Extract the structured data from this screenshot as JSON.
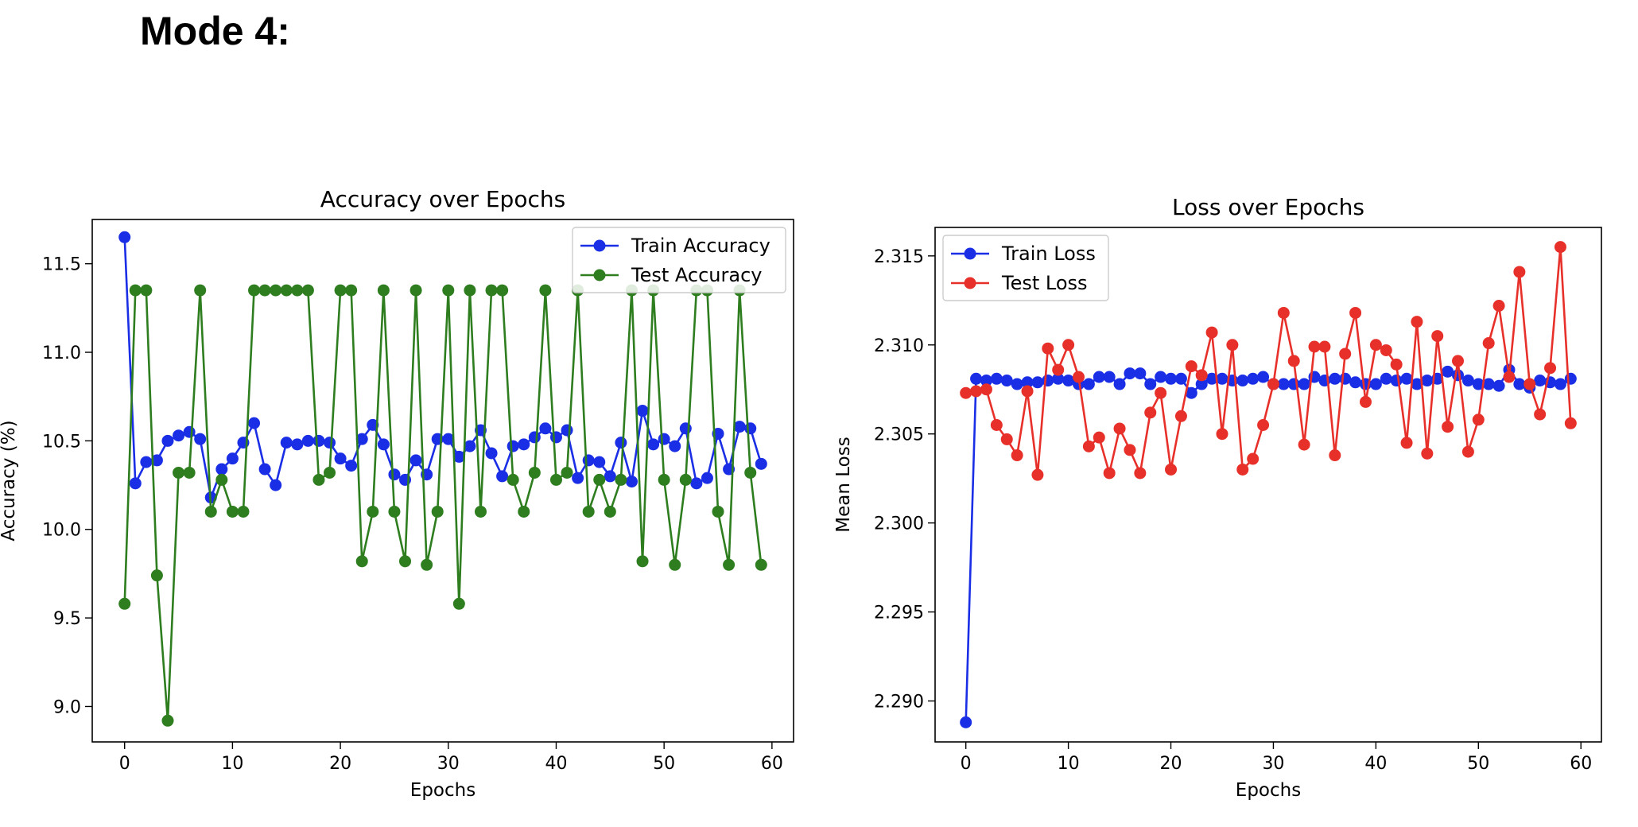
{
  "page": {
    "title": "Mode 4:"
  },
  "chart_data": [
    {
      "type": "line",
      "title": "Accuracy over Epochs",
      "xlabel": "Epochs",
      "ylabel": "Accuracy (%)",
      "xlim": [
        -3,
        62
      ],
      "ylim": [
        8.8,
        11.75
      ],
      "xticks": [
        0,
        10,
        20,
        30,
        40,
        50,
        60
      ],
      "yticks": [
        9.0,
        9.5,
        10.0,
        10.5,
        11.0,
        11.5
      ],
      "ytick_labels": [
        "9.0",
        "9.5",
        "10.0",
        "10.5",
        "11.0",
        "11.5"
      ],
      "legend_position": "top-right",
      "series": [
        {
          "name": "Train Accuracy",
          "color": "#1a2ee6",
          "values": [
            11.65,
            10.26,
            10.38,
            10.39,
            10.5,
            10.53,
            10.55,
            10.51,
            10.18,
            10.34,
            10.4,
            10.49,
            10.6,
            10.34,
            10.25,
            10.49,
            10.48,
            10.5,
            10.5,
            10.49,
            10.4,
            10.36,
            10.51,
            10.59,
            10.48,
            10.31,
            10.28,
            10.39,
            10.31,
            10.51,
            10.51,
            10.41,
            10.47,
            10.56,
            10.43,
            10.3,
            10.47,
            10.48,
            10.52,
            10.57,
            10.52,
            10.56,
            10.29,
            10.39,
            10.38,
            10.3,
            10.49,
            10.27,
            10.67,
            10.48,
            10.51,
            10.47,
            10.57,
            10.26,
            10.29,
            10.54,
            10.34,
            10.58,
            10.57,
            10.37
          ]
        },
        {
          "name": "Test Accuracy",
          "color": "#2e7d1f",
          "values": [
            9.58,
            11.35,
            11.35,
            9.74,
            8.92,
            10.32,
            10.32,
            11.35,
            10.1,
            10.28,
            10.1,
            10.1,
            11.35,
            11.35,
            11.35,
            11.35,
            11.35,
            11.35,
            10.28,
            10.32,
            11.35,
            11.35,
            9.82,
            10.1,
            11.35,
            10.1,
            9.82,
            11.35,
            9.8,
            10.1,
            11.35,
            9.58,
            11.35,
            10.1,
            11.35,
            11.35,
            10.28,
            10.1,
            10.32,
            11.35,
            10.28,
            10.32,
            11.35,
            10.1,
            10.28,
            10.1,
            10.28,
            11.35,
            9.82,
            11.35,
            10.28,
            9.8,
            10.28,
            11.35,
            11.35,
            10.1,
            9.8,
            11.35,
            10.32,
            9.8
          ]
        }
      ]
    },
    {
      "type": "line",
      "title": "Loss over Epochs",
      "xlabel": "Epochs",
      "ylabel": "Mean Loss",
      "xlim": [
        -3,
        62
      ],
      "ylim": [
        2.2877,
        2.3166
      ],
      "xticks": [
        0,
        10,
        20,
        30,
        40,
        50,
        60
      ],
      "yticks": [
        2.29,
        2.295,
        2.3,
        2.305,
        2.31,
        2.315
      ],
      "ytick_labels": [
        "2.290",
        "2.295",
        "2.300",
        "2.305",
        "2.310",
        "2.315"
      ],
      "legend_position": "top-left",
      "series": [
        {
          "name": "Train Loss",
          "color": "#1a2ee6",
          "values": [
            2.2888,
            2.3081,
            2.308,
            2.3081,
            2.308,
            2.3078,
            2.3079,
            2.3079,
            2.308,
            2.3081,
            2.308,
            2.3078,
            2.3078,
            2.3082,
            2.3082,
            2.3078,
            2.3084,
            2.3084,
            2.3078,
            2.3082,
            2.3081,
            2.3081,
            2.3073,
            2.3078,
            2.3081,
            2.3081,
            2.308,
            2.308,
            2.3081,
            2.3082,
            2.3078,
            2.3078,
            2.3078,
            2.3078,
            2.3082,
            2.308,
            2.3081,
            2.3081,
            2.3079,
            2.3078,
            2.3078,
            2.3081,
            2.308,
            2.3081,
            2.3078,
            2.308,
            2.3081,
            2.3085,
            2.3083,
            2.308,
            2.3078,
            2.3078,
            2.3077,
            2.3086,
            2.3078,
            2.3076,
            2.308,
            2.3079,
            2.3078,
            2.3081
          ]
        },
        {
          "name": "Test Loss",
          "color": "#e8302a",
          "values": [
            2.3073,
            2.3074,
            2.3075,
            2.3055,
            2.3047,
            2.3038,
            2.3074,
            2.3027,
            2.3098,
            2.3086,
            2.31,
            2.3082,
            2.3043,
            2.3048,
            2.3028,
            2.3053,
            2.3041,
            2.3028,
            2.3062,
            2.3073,
            2.303,
            2.306,
            2.3088,
            2.3083,
            2.3107,
            2.305,
            2.31,
            2.303,
            2.3036,
            2.3055,
            2.3078,
            2.3118,
            2.3091,
            2.3044,
            2.3099,
            2.3099,
            2.3038,
            2.3095,
            2.3118,
            2.3068,
            2.31,
            2.3097,
            2.3089,
            2.3045,
            2.3113,
            2.3039,
            2.3105,
            2.3054,
            2.3091,
            2.304,
            2.3058,
            2.3101,
            2.3122,
            2.3082,
            2.3141,
            2.3078,
            2.3061,
            2.3087,
            2.3155,
            2.3056
          ]
        }
      ]
    }
  ]
}
